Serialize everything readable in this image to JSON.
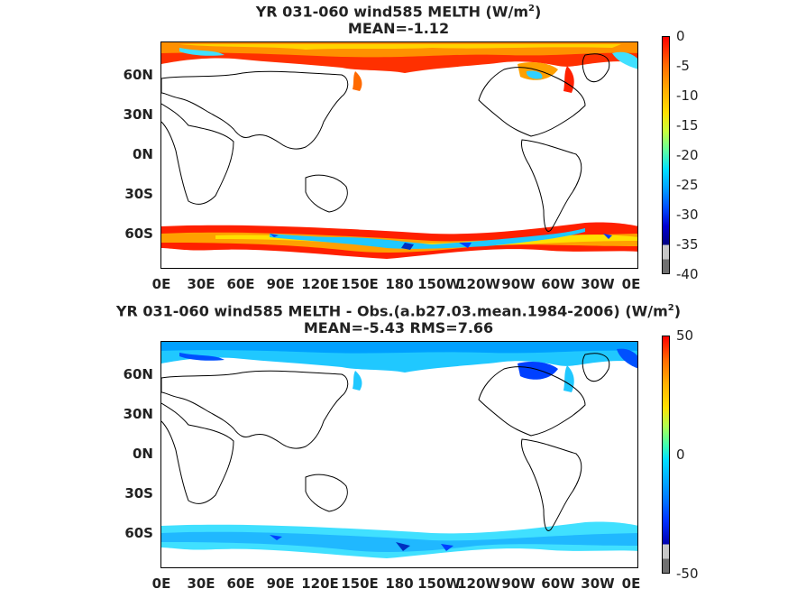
{
  "top": {
    "title_line1": "YR 031-060 wind585  MELTH (W/m",
    "title_sup": "2",
    "title_close": ")",
    "title_line2": "MEAN=-1.12",
    "colorbar_ticks": [
      "0",
      "-5",
      "-10",
      "-15",
      "-20",
      "-25",
      "-30",
      "-35",
      "-40"
    ]
  },
  "bottom": {
    "title_line1": "YR 031-060 wind585 MELTH - Obs.(a.b27.03.mean.1984-2006) (W/m",
    "title_sup": "2",
    "title_close": ")",
    "title_line2": "MEAN=-5.43 RMS=7.66",
    "colorbar_ticks": [
      "50",
      "0",
      "-50"
    ]
  },
  "lat_labels": [
    "60N",
    "30N",
    "0N",
    "30S",
    "60S"
  ],
  "lon_labels": [
    "0E",
    "30E",
    "60E",
    "90E",
    "120E",
    "150E",
    "180",
    "150W",
    "120W",
    "90W",
    "60W",
    "30W",
    "0E"
  ],
  "colors": {
    "top_colormap": [
      "#ff0000",
      "#ff6a00",
      "#ffaa00",
      "#ffe000",
      "#c8ff3c",
      "#60ffa0",
      "#00e0ff",
      "#00a0ff",
      "#0050ff",
      "#0000d0",
      "#000080",
      "#c8c8c8",
      "#707070"
    ],
    "bottom_colormap": [
      "#ff0000",
      "#ff6a00",
      "#ffb000",
      "#ffe000",
      "#b0ff50",
      "#40ffb0",
      "#00e0ff",
      "#00b0ff",
      "#0070ff",
      "#0030ff",
      "#0000b0",
      "#c8c8c8",
      "#707070"
    ]
  }
}
